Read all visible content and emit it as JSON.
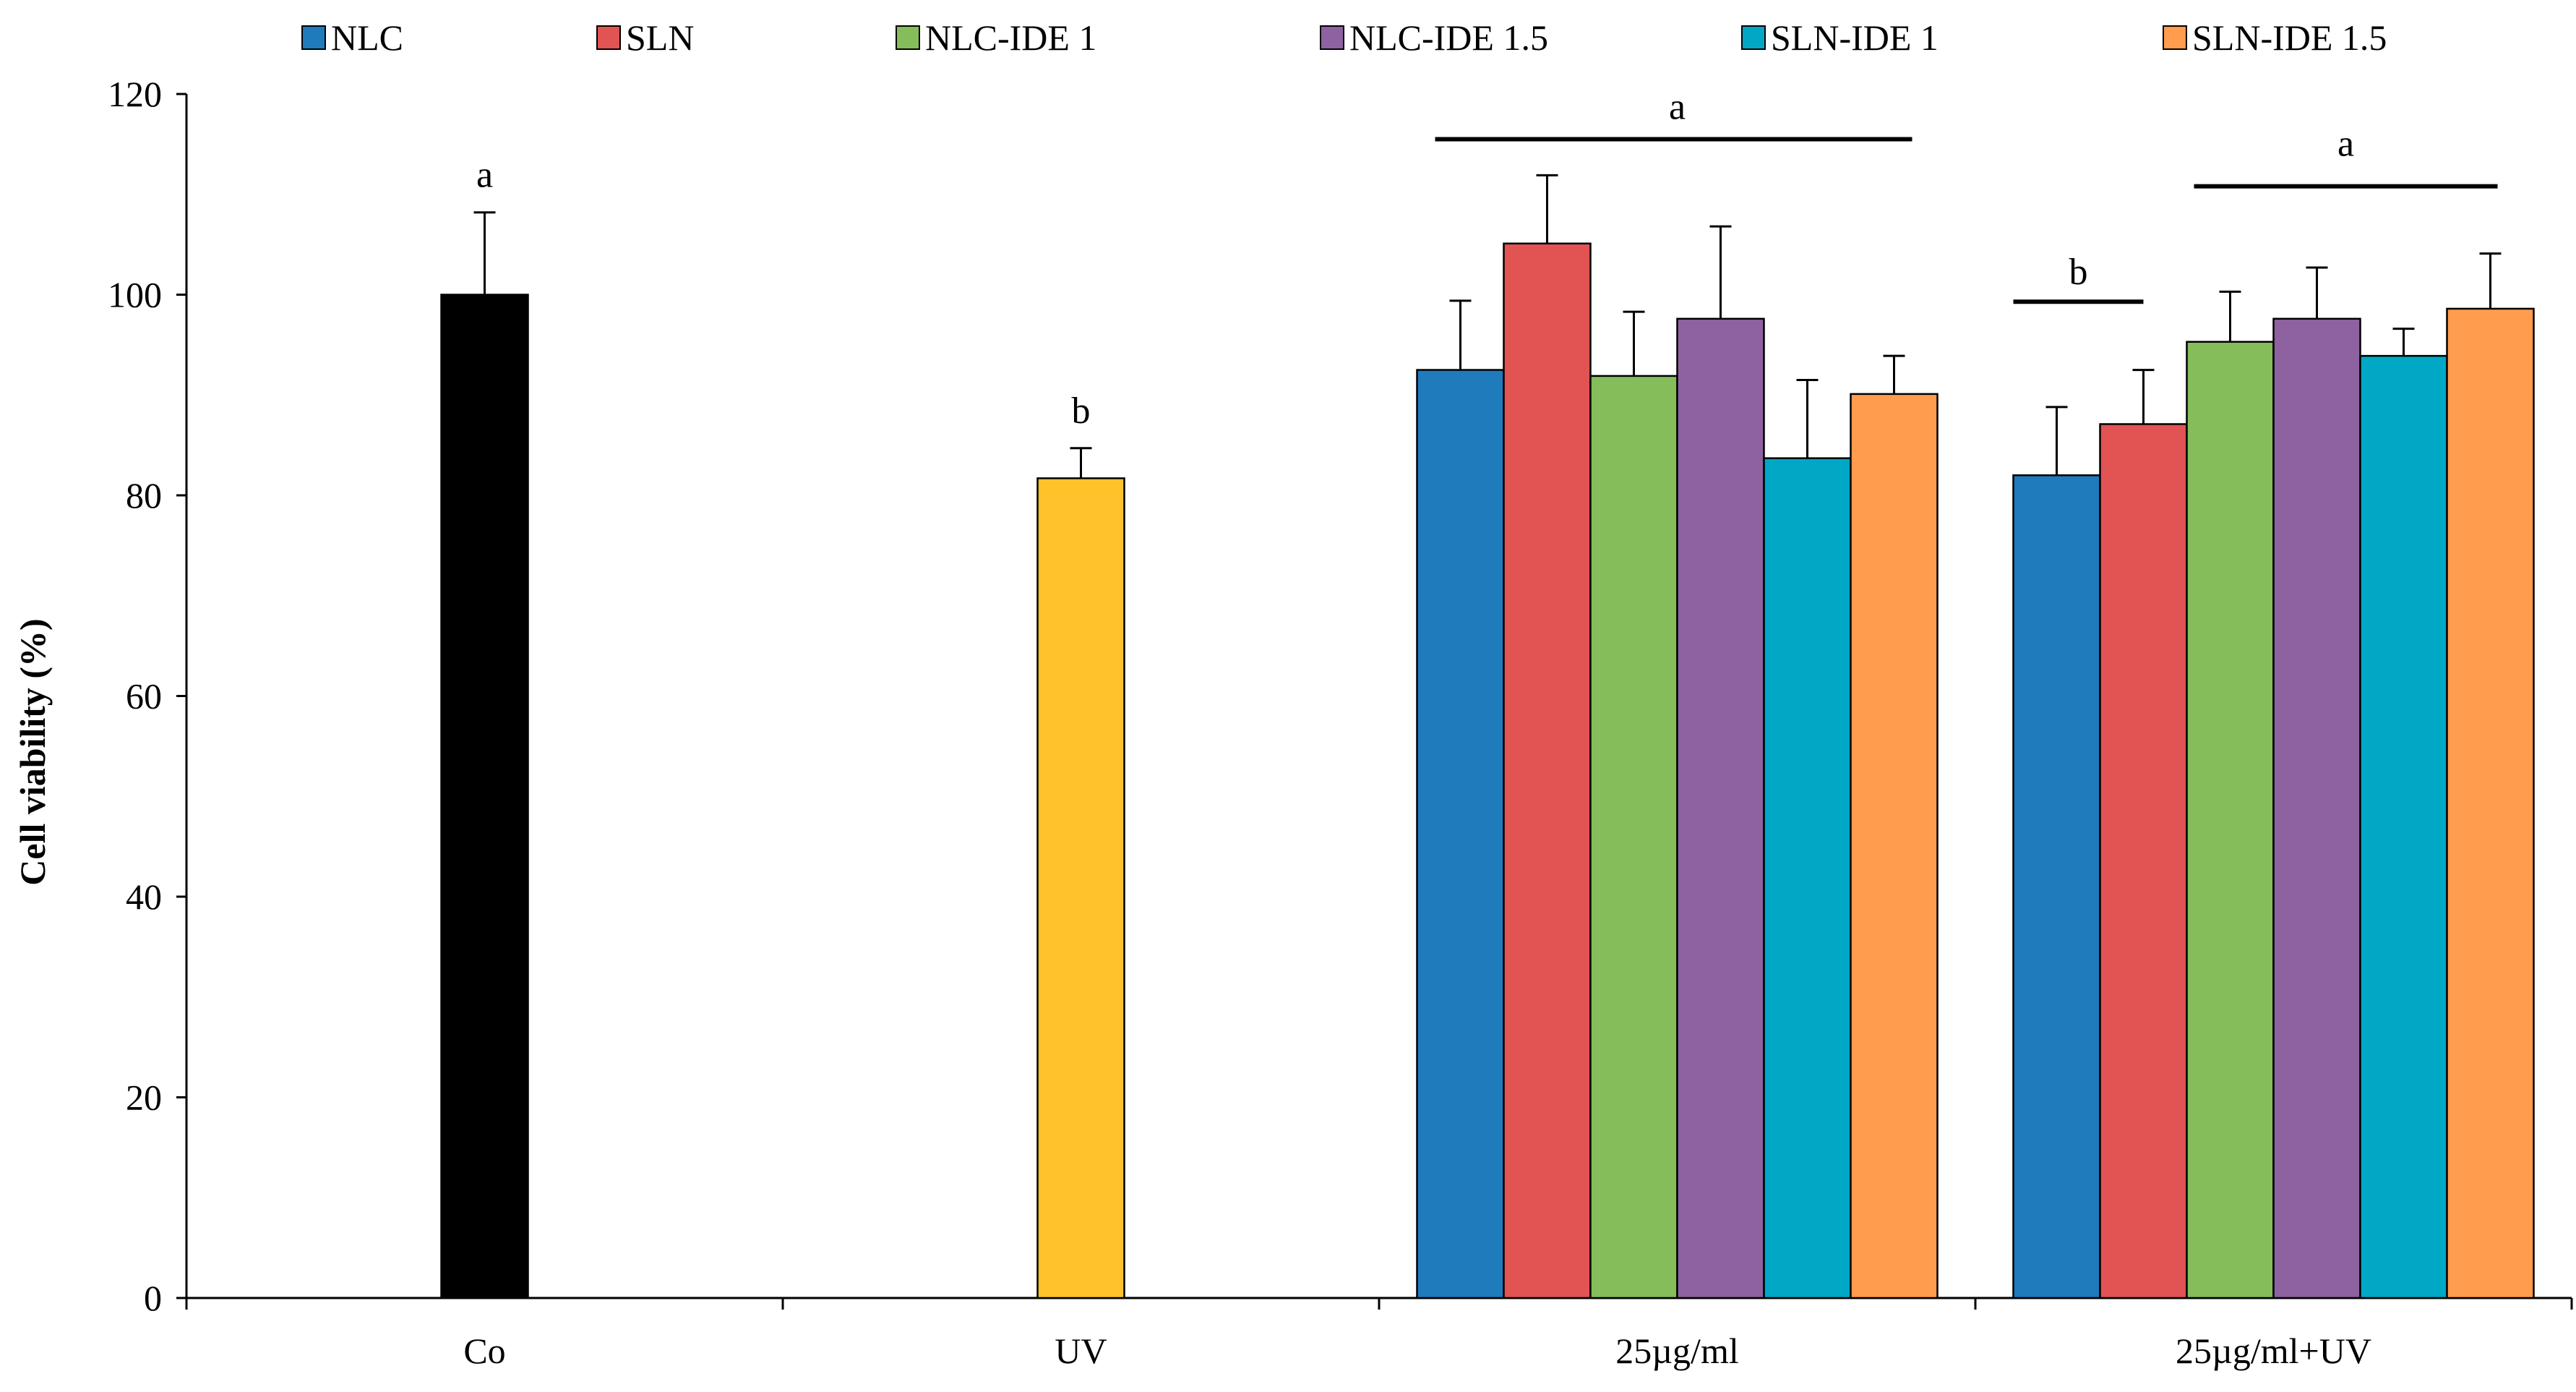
{
  "chart_data": {
    "type": "bar",
    "ylabel": "Cell viability  (%)",
    "ylim": [
      0,
      120
    ],
    "yticks": [
      0,
      20,
      40,
      60,
      80,
      100,
      120
    ],
    "categories": [
      "Co",
      "UV",
      "25µg/ml",
      "25µg/ml+UV"
    ],
    "legend": [
      {
        "name": "NLC",
        "color": "#1f7bbb"
      },
      {
        "name": "SLN",
        "color": "#e25353"
      },
      {
        "name": "NLC-IDE 1",
        "color": "#84bd5a"
      },
      {
        "name": "NLC-IDE 1.5",
        "color": "#8e62a0"
      },
      {
        "name": "SLN-IDE 1",
        "color": "#00a8c6"
      },
      {
        "name": "SLN-IDE 1.5",
        "color": "#ff9c4e"
      }
    ],
    "groups": [
      {
        "category": "Co",
        "bars": [
          {
            "value": 100,
            "error": 8.2,
            "color": "#000000"
          }
        ]
      },
      {
        "category": "UV",
        "bars": [
          {
            "value": 81.7,
            "error": 3.0,
            "color": "#ffc22b"
          }
        ]
      },
      {
        "category": "25µg/ml",
        "bars": [
          {
            "series": "NLC",
            "value": 92.5,
            "error": 6.9
          },
          {
            "series": "SLN",
            "value": 105.1,
            "error": 6.8
          },
          {
            "series": "NLC-IDE 1",
            "value": 91.9,
            "error": 6.4
          },
          {
            "series": "NLC-IDE 1.5",
            "value": 97.6,
            "error": 9.2
          },
          {
            "series": "SLN-IDE 1",
            "value": 83.7,
            "error": 7.8
          },
          {
            "series": "SLN-IDE 1.5",
            "value": 90.1,
            "error": 3.8
          }
        ]
      },
      {
        "category": "25µg/ml+UV",
        "bars": [
          {
            "series": "NLC",
            "value": 82.0,
            "error": 6.8
          },
          {
            "series": "SLN",
            "value": 87.1,
            "error": 5.4
          },
          {
            "series": "NLC-IDE 1",
            "value": 95.3,
            "error": 5.0
          },
          {
            "series": "NLC-IDE 1.5",
            "value": 97.6,
            "error": 5.1
          },
          {
            "series": "SLN-IDE 1",
            "value": 93.9,
            "error": 2.7
          },
          {
            "series": "SLN-IDE 1.5",
            "value": 98.6,
            "error": 5.5
          }
        ]
      }
    ],
    "annotations": [
      {
        "text": "a",
        "target": "Co"
      },
      {
        "text": "b",
        "target": "UV"
      },
      {
        "text": "a",
        "target": "25µg/ml: all six bars",
        "bracket": true
      },
      {
        "text": "b",
        "target": "25µg/ml+UV: NLC, SLN",
        "bracket": true
      },
      {
        "text": "a",
        "target": "25µg/ml+UV: NLC-IDE 1 to SLN-IDE 1.5",
        "bracket": true
      }
    ]
  }
}
